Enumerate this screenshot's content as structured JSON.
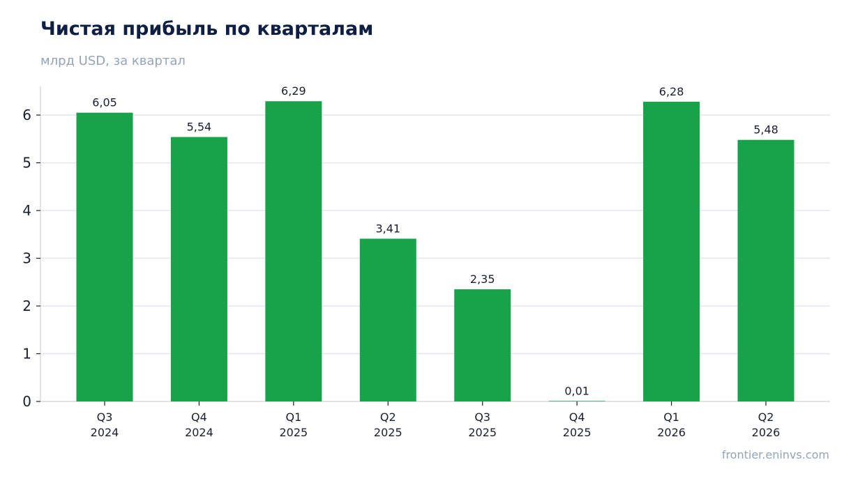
{
  "header": {
    "title": "Чистая прибыль по кварталам",
    "subtitle": "млрд USD, за квартал"
  },
  "footer": {
    "source": "frontier.eninvs.com"
  },
  "colors": {
    "bar": "#18a34a",
    "grid": "#e2e6ee",
    "axis": "#cdd3dc",
    "text": "#1a1f2e",
    "title": "#0f1f44",
    "muted": "#94a3b8"
  },
  "chart_data": {
    "type": "bar",
    "categories": [
      [
        "Q3",
        "2024"
      ],
      [
        "Q4",
        "2024"
      ],
      [
        "Q1",
        "2025"
      ],
      [
        "Q2",
        "2025"
      ],
      [
        "Q3",
        "2025"
      ],
      [
        "Q4",
        "2025"
      ],
      [
        "Q1",
        "2026"
      ],
      [
        "Q2",
        "2026"
      ]
    ],
    "values": [
      6.05,
      5.54,
      6.29,
      3.41,
      2.35,
      0.01,
      6.28,
      5.48
    ],
    "data_labels": [
      "6,05",
      "5,54",
      "6,29",
      "3,41",
      "2,35",
      "0,01",
      "6,28",
      "5,48"
    ],
    "yticks": [
      0,
      1,
      2,
      3,
      4,
      5,
      6
    ],
    "ylim": [
      0,
      6.6
    ],
    "grid": true,
    "xlabel": "",
    "ylabel": ""
  }
}
